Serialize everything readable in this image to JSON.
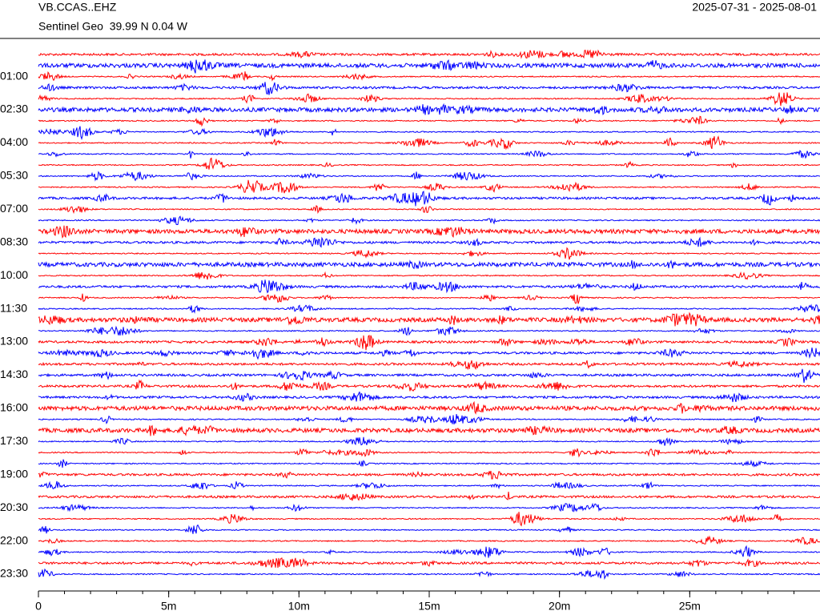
{
  "header": {
    "station": "VB.CCAS..EHZ",
    "location": "Sentinel Geo  39.99 N 0.04 W",
    "date_range": "2025-07-31 - 2025-08-01"
  },
  "chart_data": {
    "type": "helicorder",
    "colors": [
      "#ff0000",
      "#0000ff"
    ],
    "xlim": [
      0,
      30
    ],
    "xticks": [
      0,
      {
        "value": 5,
        "label": "5m"
      },
      {
        "value": 10,
        "label": "10m"
      },
      {
        "value": 15,
        "label": "15m"
      },
      {
        "value": 20,
        "label": "20m"
      },
      {
        "value": 25,
        "label": "25m"
      }
    ],
    "ylim": [
      0,
      1410
    ],
    "yticks": [
      {
        "value": 60,
        "label": "01:00"
      },
      {
        "value": 150,
        "label": "02:30"
      },
      {
        "value": 240,
        "label": "04:00"
      },
      {
        "value": 330,
        "label": "05:30"
      },
      {
        "value": 420,
        "label": "07:00"
      },
      {
        "value": 510,
        "label": "08:30"
      },
      {
        "value": 600,
        "label": "10:00"
      },
      {
        "value": 690,
        "label": "11:30"
      },
      {
        "value": 780,
        "label": "13:00"
      },
      {
        "value": 870,
        "label": "14:30"
      },
      {
        "value": 960,
        "label": "16:00"
      },
      {
        "value": 1050,
        "label": "17:30"
      },
      {
        "value": 1140,
        "label": "19:00"
      },
      {
        "value": 1230,
        "label": "20:30"
      },
      {
        "value": 1320,
        "label": "22:00"
      },
      {
        "value": 1410,
        "label": "23:30"
      }
    ]
  }
}
